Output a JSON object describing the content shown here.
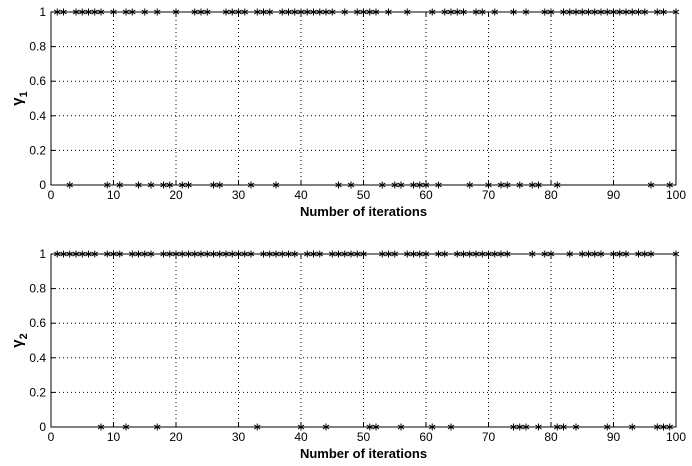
{
  "chart_data": [
    {
      "type": "scatter",
      "marker": "asterisk",
      "color": "#000000",
      "grid": true,
      "xlabel": "Number of iterations",
      "ylabel": "γ",
      "ylabel_subscript": "1",
      "xlim": [
        0,
        100
      ],
      "ylim": [
        0,
        1
      ],
      "xticks": [
        0,
        10,
        20,
        30,
        40,
        50,
        60,
        70,
        80,
        90,
        100
      ],
      "yticks": [
        0,
        0.2,
        0.4,
        0.6,
        0.8,
        1
      ],
      "series": [
        {
          "x": [
            1,
            2,
            3,
            4,
            5,
            6,
            7,
            8,
            9,
            10,
            11,
            12,
            13,
            14,
            15,
            16,
            17,
            18,
            19,
            20,
            21,
            22,
            23,
            24,
            25,
            26,
            27,
            28,
            29,
            30,
            31,
            32,
            33,
            34,
            35,
            36,
            37,
            38,
            39,
            40,
            41,
            42,
            43,
            44,
            45,
            46,
            47,
            48,
            49,
            50,
            51,
            52,
            53,
            54,
            55,
            56,
            57,
            58,
            59,
            60,
            61,
            62,
            63,
            64,
            65,
            66,
            67,
            68,
            69,
            70,
            71,
            72,
            73,
            74,
            75,
            76,
            77,
            78,
            79,
            80,
            81,
            82,
            83,
            84,
            85,
            86,
            87,
            88,
            89,
            90,
            91,
            92,
            93,
            94,
            95,
            96,
            97,
            98,
            99,
            100
          ],
          "y": [
            1,
            1,
            0,
            1,
            1,
            1,
            1,
            1,
            0,
            1,
            0,
            1,
            1,
            0,
            1,
            0,
            1,
            0,
            0,
            1,
            0,
            0,
            1,
            1,
            1,
            0,
            0,
            1,
            1,
            1,
            1,
            0,
            1,
            1,
            1,
            0,
            1,
            1,
            1,
            1,
            1,
            1,
            1,
            1,
            1,
            0,
            1,
            0,
            1,
            1,
            1,
            1,
            0,
            1,
            0,
            0,
            1,
            0,
            0,
            0,
            1,
            0,
            1,
            1,
            1,
            1,
            0,
            1,
            1,
            0,
            1,
            0,
            0,
            1,
            0,
            1,
            0,
            0,
            1,
            1,
            0,
            1,
            1,
            1,
            1,
            1,
            1,
            1,
            1,
            1,
            1,
            1,
            1,
            1,
            1,
            0,
            1,
            1,
            0,
            1
          ]
        }
      ]
    },
    {
      "type": "scatter",
      "marker": "asterisk",
      "color": "#000000",
      "grid": true,
      "xlabel": "Number of iterations",
      "ylabel": "γ",
      "ylabel_subscript": "2",
      "xlim": [
        0,
        100
      ],
      "ylim": [
        0,
        1
      ],
      "xticks": [
        0,
        10,
        20,
        30,
        40,
        50,
        60,
        70,
        80,
        90,
        100
      ],
      "yticks": [
        0,
        0.2,
        0.4,
        0.6,
        0.8,
        1
      ],
      "series": [
        {
          "x": [
            1,
            2,
            3,
            4,
            5,
            6,
            7,
            8,
            9,
            10,
            11,
            12,
            13,
            14,
            15,
            16,
            17,
            18,
            19,
            20,
            21,
            22,
            23,
            24,
            25,
            26,
            27,
            28,
            29,
            30,
            31,
            32,
            33,
            34,
            35,
            36,
            37,
            38,
            39,
            40,
            41,
            42,
            43,
            44,
            45,
            46,
            47,
            48,
            49,
            50,
            51,
            52,
            53,
            54,
            55,
            56,
            57,
            58,
            59,
            60,
            61,
            62,
            63,
            64,
            65,
            66,
            67,
            68,
            69,
            70,
            71,
            72,
            73,
            74,
            75,
            76,
            77,
            78,
            79,
            80,
            81,
            82,
            83,
            84,
            85,
            86,
            87,
            88,
            89,
            90,
            91,
            92,
            93,
            94,
            95,
            96,
            97,
            98,
            99,
            100
          ],
          "y": [
            1,
            1,
            1,
            1,
            1,
            1,
            1,
            0,
            1,
            1,
            1,
            0,
            1,
            1,
            1,
            1,
            0,
            1,
            1,
            1,
            1,
            1,
            1,
            1,
            1,
            1,
            1,
            1,
            1,
            1,
            1,
            1,
            0,
            1,
            1,
            1,
            1,
            1,
            1,
            0,
            1,
            1,
            1,
            0,
            1,
            1,
            1,
            1,
            1,
            1,
            0,
            0,
            1,
            1,
            1,
            0,
            1,
            1,
            1,
            1,
            0,
            1,
            1,
            0,
            1,
            1,
            1,
            1,
            1,
            1,
            1,
            1,
            1,
            0,
            0,
            0,
            1,
            0,
            1,
            1,
            0,
            0,
            1,
            0,
            1,
            1,
            1,
            1,
            0,
            1,
            1,
            1,
            0,
            1,
            1,
            1,
            0,
            0,
            0,
            1
          ]
        }
      ]
    }
  ]
}
